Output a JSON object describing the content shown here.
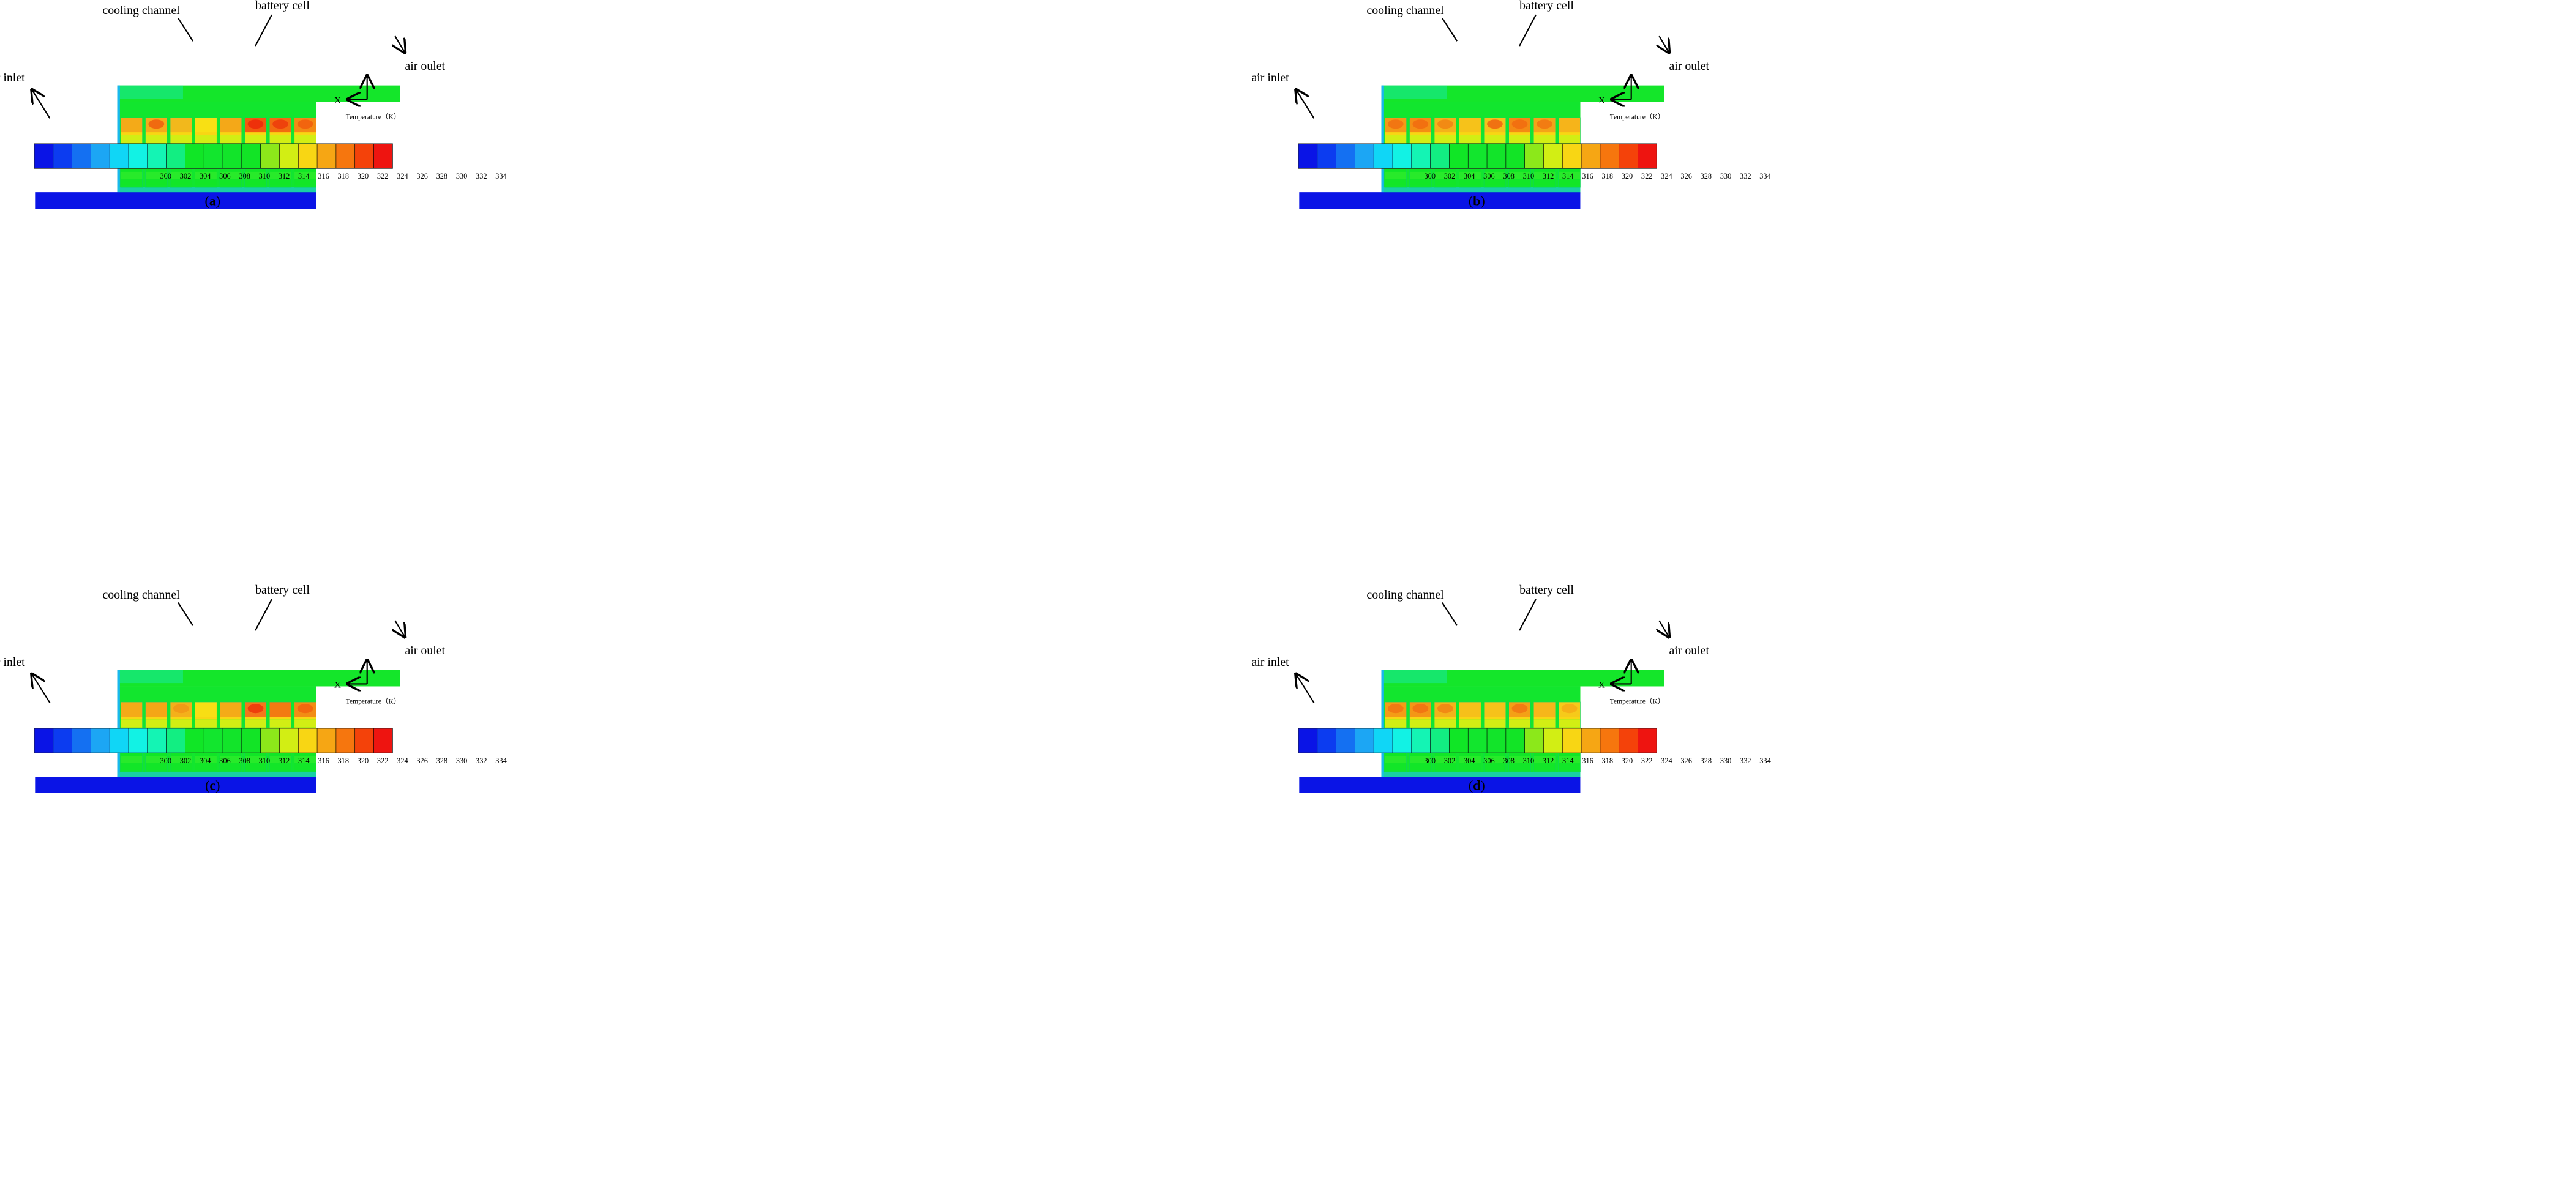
{
  "figure": {
    "labels": {
      "cooling_channel": "cooling channel",
      "battery_cell": "battery cell",
      "air_inlet": "air inlet",
      "air_outlet": "air oulet",
      "axis_x": "X",
      "temperature": "Temperature（K）"
    },
    "colorbar": {
      "ticks": [
        "300",
        "302",
        "304",
        "306",
        "308",
        "310",
        "312",
        "314",
        "316",
        "318",
        "320",
        "322",
        "324",
        "326",
        "328",
        "330",
        "332",
        "334"
      ],
      "colors": [
        "#0a14e6",
        "#0c3cf0",
        "#1470f2",
        "#1ca6f4",
        "#10d6f6",
        "#12f2e4",
        "#14f4b4",
        "#12ee82",
        "#10e626",
        "#12e62e",
        "#12e42a",
        "#12e426",
        "#8ce81a",
        "#d2ee14",
        "#f8d614",
        "#f6a614",
        "#f6760e",
        "#f4420a",
        "#ee1410"
      ]
    },
    "panels": [
      {
        "caption": "a",
        "cells": [
          {
            "top": "#f4aa18",
            "hot": ""
          },
          {
            "top": "#f4ac1a",
            "hot": "#f06a10"
          },
          {
            "top": "#f2b81c",
            "hot": ""
          },
          {
            "top": "#f8e014",
            "hot": ""
          },
          {
            "top": "#f4a818",
            "hot": ""
          },
          {
            "top": "#f25a0e",
            "hot": "#ee300a"
          },
          {
            "top": "#f26c10",
            "hot": "#ee420c"
          },
          {
            "top": "#f48a14",
            "hot": "#f2640e"
          }
        ]
      },
      {
        "caption": "b",
        "cells": [
          {
            "top": "#f49a16",
            "hot": "#f27612"
          },
          {
            "top": "#f48e14",
            "hot": "#f27010"
          },
          {
            "top": "#f4b21a",
            "hot": "#f28a14"
          },
          {
            "top": "#f6c21a",
            "hot": ""
          },
          {
            "top": "#f6c21a",
            "hot": "#f07212"
          },
          {
            "top": "#f48a14",
            "hot": "#f27010"
          },
          {
            "top": "#f4a418",
            "hot": "#f27c12"
          },
          {
            "top": "#f6b41a",
            "hot": ""
          }
        ]
      },
      {
        "caption": "c",
        "cells": [
          {
            "top": "#f4aa18",
            "hot": ""
          },
          {
            "top": "#f4a616",
            "hot": ""
          },
          {
            "top": "#f4b01a",
            "hot": "#f29a16"
          },
          {
            "top": "#f8de14",
            "hot": ""
          },
          {
            "top": "#f4aa18",
            "hot": ""
          },
          {
            "top": "#f4761a",
            "hot": "#ee3e0c"
          },
          {
            "top": "#f27a12",
            "hot": ""
          },
          {
            "top": "#f28c14",
            "hot": "#f2680e"
          }
        ]
      },
      {
        "caption": "d",
        "cells": [
          {
            "top": "#f49c16",
            "hot": "#f27a12"
          },
          {
            "top": "#f49616",
            "hot": "#f27612"
          },
          {
            "top": "#f4b21a",
            "hot": "#f28a14"
          },
          {
            "top": "#f6c01a",
            "hot": ""
          },
          {
            "top": "#f6c21a",
            "hot": ""
          },
          {
            "top": "#f4a016",
            "hot": "#f27c12"
          },
          {
            "top": "#f6b61a",
            "hot": ""
          },
          {
            "top": "#f6ca1a",
            "hot": "#f6b016"
          }
        ]
      }
    ]
  }
}
